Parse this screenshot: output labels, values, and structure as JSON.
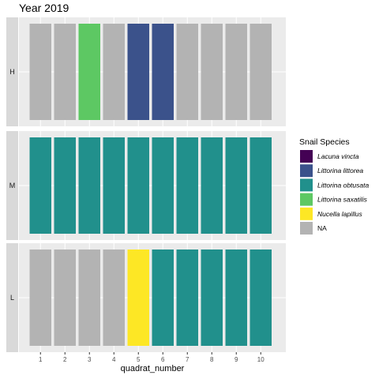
{
  "chart_data": {
    "type": "bar",
    "title": "Year 2019",
    "xlabel": "quadrat_number",
    "ylabel": "",
    "categories": [
      "1",
      "2",
      "3",
      "4",
      "5",
      "6",
      "7",
      "8",
      "9",
      "10"
    ],
    "facets": [
      {
        "label": "H",
        "species": [
          "NA",
          "NA",
          "Littorina saxatilis",
          "NA",
          "Littorina littorea",
          "Littorina littorea",
          "NA",
          "NA",
          "NA",
          "NA"
        ]
      },
      {
        "label": "M",
        "species": [
          "Littorina obtusata",
          "Littorina obtusata",
          "Littorina obtusata",
          "Littorina obtusata",
          "Littorina obtusata",
          "Littorina obtusata",
          "Littorina obtusata",
          "Littorina obtusata",
          "Littorina obtusata",
          "Littorina obtusata"
        ]
      },
      {
        "label": "L",
        "species": [
          "NA",
          "NA",
          "NA",
          "NA",
          "Nucella lapillus",
          "Littorina obtusata",
          "Littorina obtusata",
          "Littorina obtusata",
          "Littorina obtusata",
          "Littorina obtusata"
        ]
      }
    ],
    "legend": {
      "title": "Snail Species",
      "position": "right",
      "entries": [
        {
          "name": "Lacuna vincta",
          "color": "#440154",
          "italic": true
        },
        {
          "name": "Littorina littorea",
          "color": "#3B528B",
          "italic": true
        },
        {
          "name": "Littorina obtusata",
          "color": "#21908C",
          "italic": true
        },
        {
          "name": "Littorina saxatilis",
          "color": "#5DC863",
          "italic": true
        },
        {
          "name": "Nucella lapillus",
          "color": "#FDE725",
          "italic": true
        },
        {
          "name": "NA",
          "color": "#B3B3B3",
          "italic": false
        }
      ]
    },
    "colors": {
      "panel_background": "#EBEBEB",
      "grid": "#FFFFFF",
      "strip_background": "#D9D9D9"
    }
  }
}
